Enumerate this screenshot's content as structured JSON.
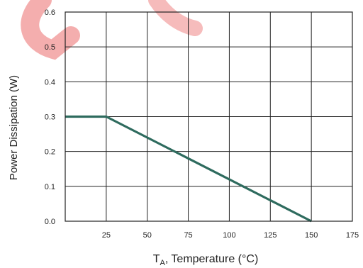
{
  "chart_data": {
    "type": "line",
    "title": "",
    "xlabel": {
      "main": "T",
      "sub": "A",
      "rest": ", Temperature (°C)"
    },
    "ylabel": "Power Dissipation (W)",
    "xlim": [
      0,
      175
    ],
    "ylim": [
      0,
      0.6
    ],
    "x_ticks": [
      25,
      50,
      75,
      100,
      125,
      150,
      175
    ],
    "x_tick_labels": [
      "25",
      "50",
      "75",
      "100",
      "125",
      "150",
      "175"
    ],
    "y_ticks": [
      0,
      0.1,
      0.2,
      0.3,
      0.4,
      0.5,
      0.6
    ],
    "y_tick_labels": [
      "0.0",
      "0.1",
      "0.2",
      "0.3",
      "0.4",
      "0.5",
      "0.6"
    ],
    "grid": true,
    "series": [
      {
        "x": [
          0,
          25,
          150
        ],
        "y": [
          0.3,
          0.3,
          0
        ],
        "color": "#2e6b5e"
      }
    ],
    "colors": {
      "line": "#2e6b5e",
      "grid": "#222222",
      "watermark": "#e23a3a"
    }
  }
}
